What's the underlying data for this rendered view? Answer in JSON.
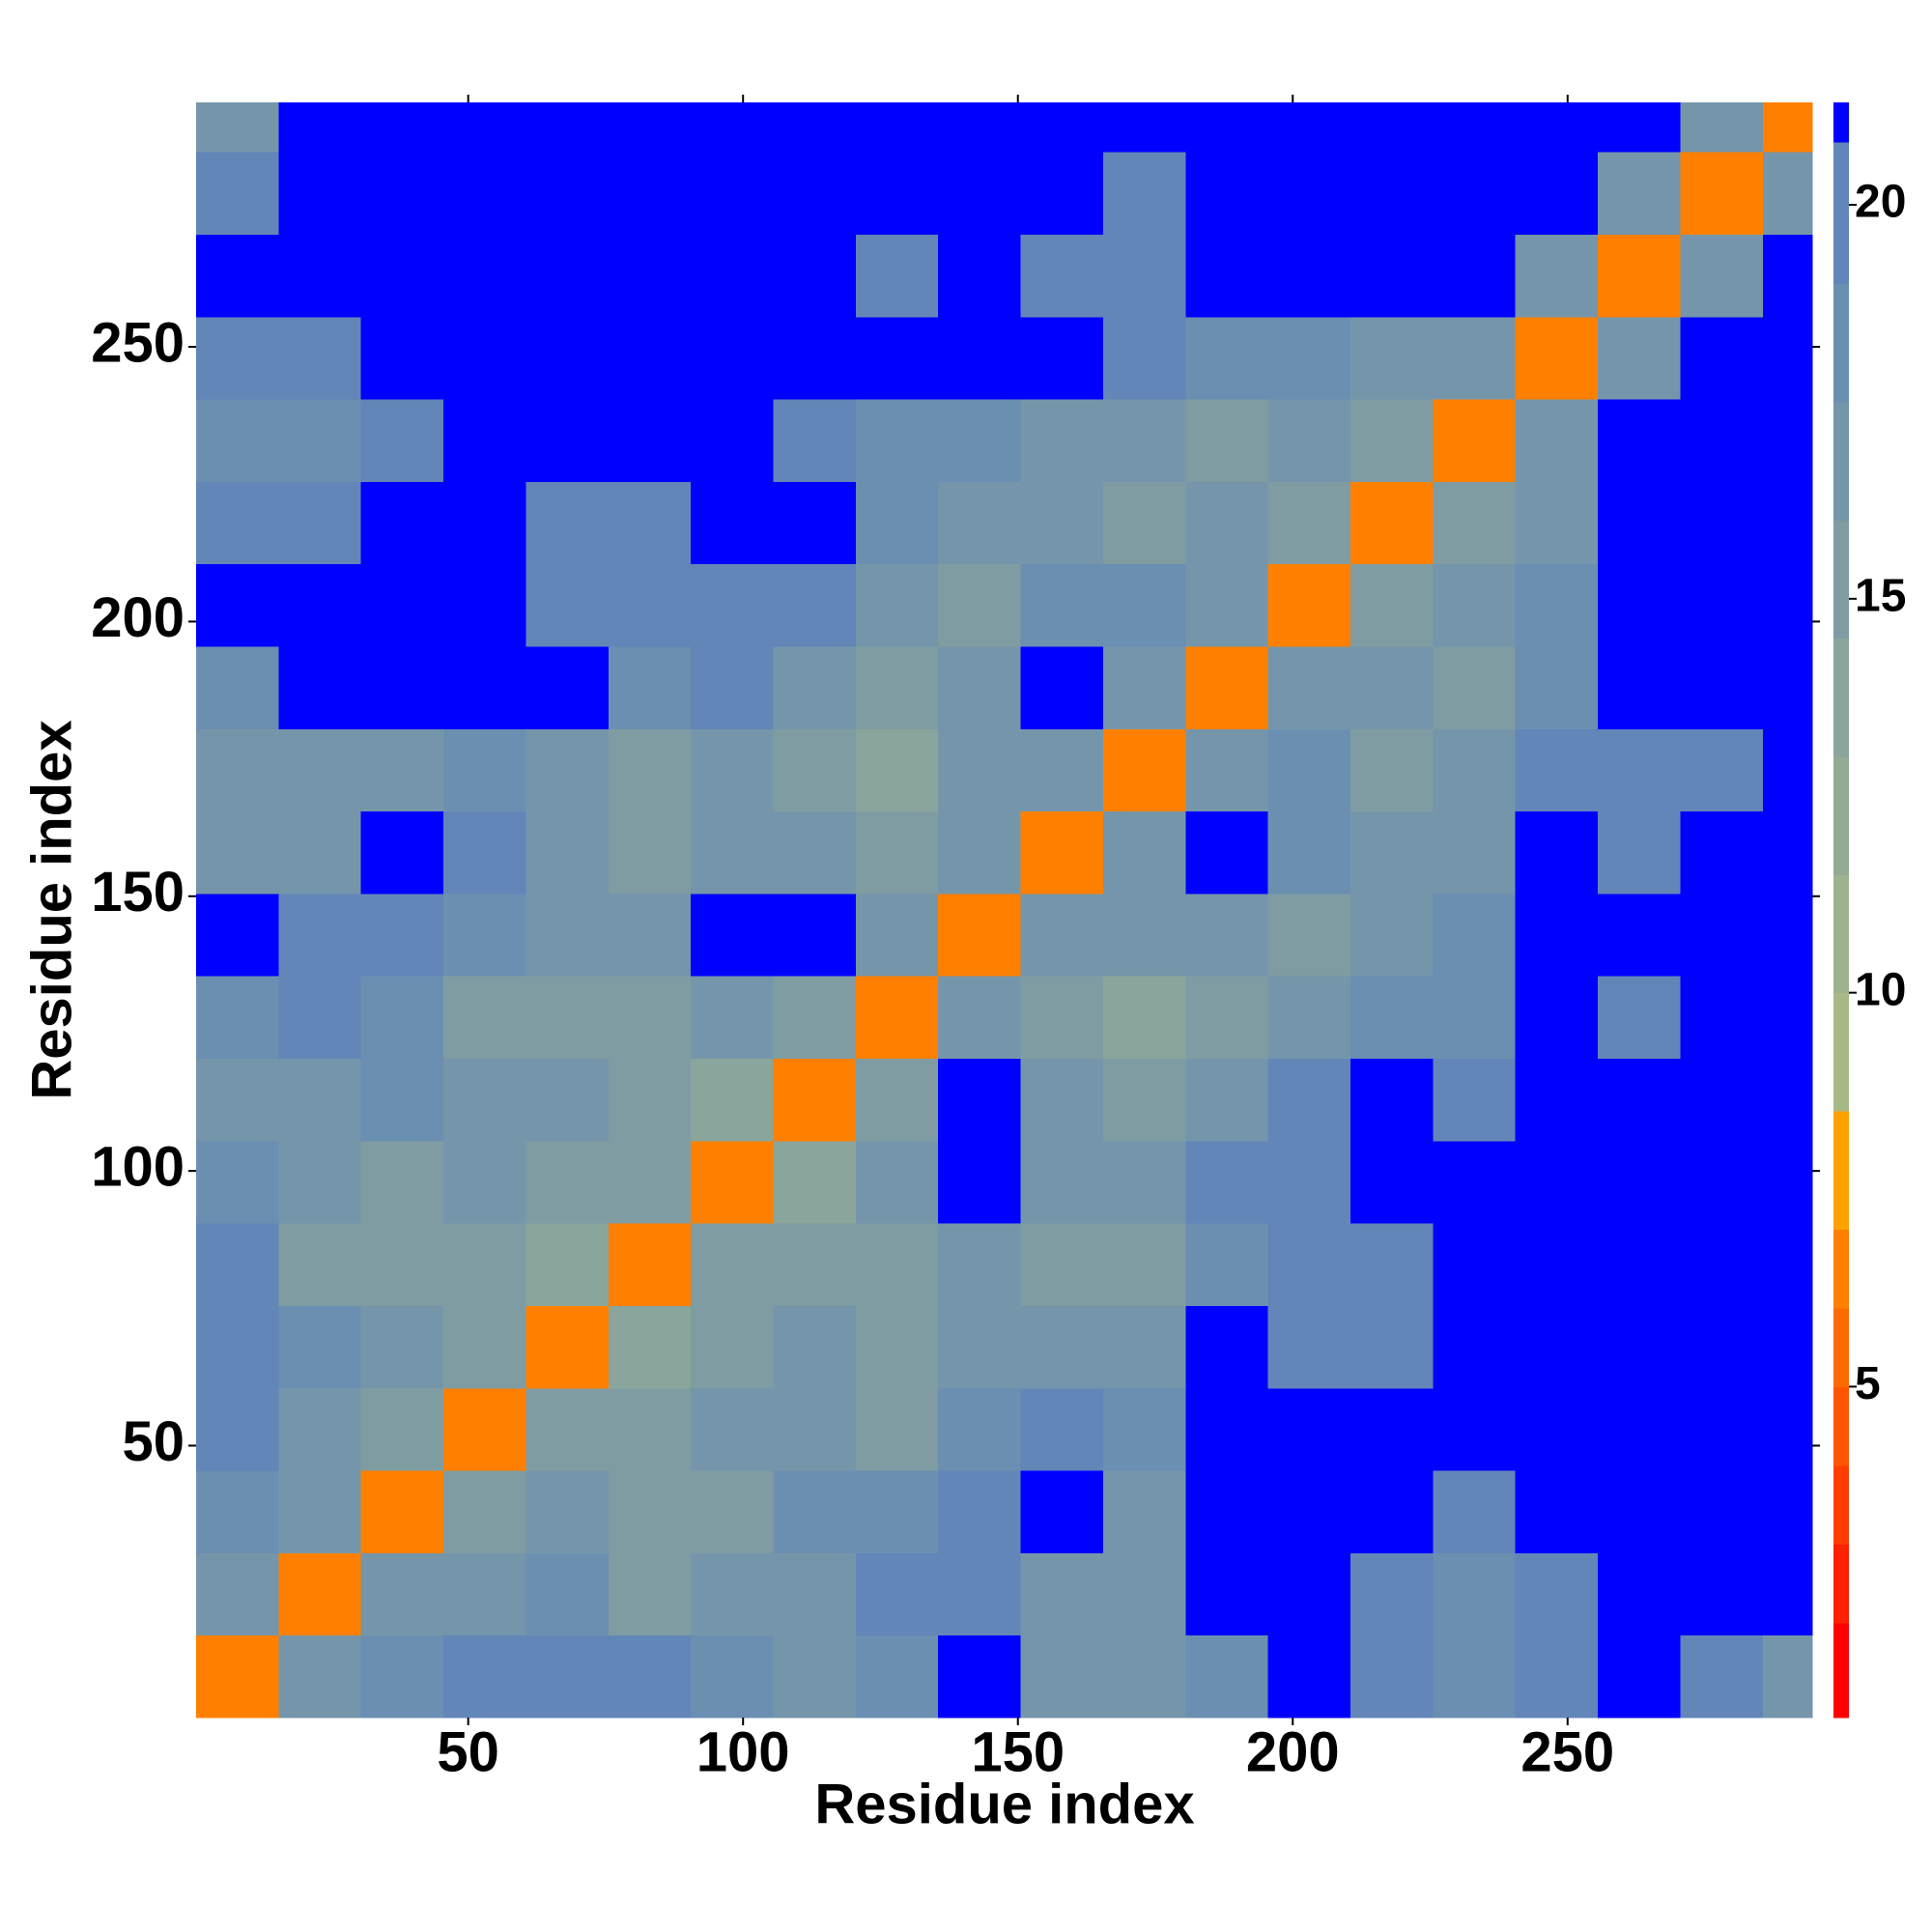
{
  "chart_data": {
    "type": "heatmap",
    "xlabel": "Residue index",
    "ylabel": "Residue index",
    "xlim": [
      0.5,
      294.5
    ],
    "ylim": [
      0.5,
      294.5
    ],
    "xticks": [
      50,
      100,
      150,
      200,
      250
    ],
    "yticks": [
      50,
      100,
      150,
      200,
      250
    ],
    "x_bins": [
      0.5,
      15.5,
      30.5,
      45.5,
      60.5,
      75.5,
      90.5,
      105.5,
      120.5,
      135.5,
      150.5,
      165.5,
      180.5,
      195.5,
      210.5,
      225.5,
      240.5,
      255.5,
      270.5,
      285.5,
      294.5
    ],
    "y_bins": [
      0.5,
      15.5,
      30.5,
      45.5,
      60.5,
      75.5,
      90.5,
      105.5,
      120.5,
      135.5,
      150.5,
      165.5,
      180.5,
      195.5,
      210.5,
      225.5,
      240.5,
      255.5,
      270.5,
      285.5,
      294.5
    ],
    "values": [
      [
        6,
        16,
        18,
        19,
        19,
        19,
        18,
        16,
        18,
        21,
        17,
        16,
        18,
        21,
        19,
        18,
        19,
        21,
        19,
        17
      ],
      [
        16,
        6,
        16,
        16,
        18,
        15,
        17,
        17,
        19,
        19,
        17,
        16,
        21,
        21,
        19,
        18,
        19,
        21,
        21,
        21
      ],
      [
        18,
        16,
        6,
        15,
        16,
        15,
        15,
        18,
        18,
        19,
        21,
        17,
        21,
        21,
        21,
        20,
        21,
        21,
        21,
        21
      ],
      [
        19,
        16,
        15,
        6,
        15,
        15,
        16,
        16,
        15,
        18,
        19,
        18,
        21,
        21,
        21,
        21,
        21,
        21,
        21,
        21
      ],
      [
        19,
        18,
        16,
        15,
        6,
        14,
        15,
        17,
        15,
        17,
        16,
        17,
        21,
        20,
        20,
        21,
        21,
        21,
        21,
        21
      ],
      [
        19,
        15,
        15,
        15,
        14,
        6,
        15,
        15,
        15,
        17,
        15,
        15,
        18,
        19,
        20,
        21,
        21,
        21,
        21,
        21
      ],
      [
        18,
        17,
        15,
        16,
        15,
        15,
        6,
        14,
        16,
        21,
        16,
        16,
        19,
        19,
        21,
        21,
        21,
        21,
        21,
        21
      ],
      [
        16,
        17,
        18,
        16,
        17,
        15,
        14,
        6,
        15,
        21,
        16,
        15,
        17,
        19,
        21,
        19,
        21,
        21,
        21,
        21
      ],
      [
        18,
        19,
        18,
        15,
        15,
        15,
        16,
        15,
        6,
        16,
        15,
        14,
        15,
        16,
        18,
        18,
        21,
        20,
        21,
        21
      ],
      [
        21,
        19,
        19,
        18,
        17,
        17,
        21,
        21,
        16,
        6,
        16,
        16,
        17,
        15,
        16,
        18,
        21,
        21,
        21,
        21
      ],
      [
        17,
        17,
        21,
        19,
        16,
        15,
        16,
        16,
        15,
        16,
        6,
        16,
        21,
        18,
        16,
        17,
        21,
        20,
        21,
        21
      ],
      [
        16,
        16,
        17,
        18,
        17,
        15,
        16,
        15,
        14,
        16,
        16,
        6,
        16,
        18,
        15,
        16,
        19,
        20,
        20,
        21
      ],
      [
        18,
        21,
        21,
        21,
        21,
        18,
        19,
        17,
        15,
        17,
        21,
        16,
        6,
        16,
        16,
        15,
        18,
        21,
        21,
        21
      ],
      [
        21,
        21,
        21,
        21,
        20,
        19,
        19,
        19,
        16,
        15,
        18,
        18,
        16,
        6,
        15,
        17,
        18,
        21,
        21,
        21
      ],
      [
        19,
        19,
        21,
        21,
        20,
        20,
        21,
        21,
        18,
        16,
        16,
        15,
        16,
        15,
        6,
        15,
        16,
        21,
        21,
        21
      ],
      [
        18,
        18,
        20,
        21,
        21,
        21,
        21,
        19,
        18,
        18,
        17,
        16,
        15,
        17,
        15,
        6,
        16,
        21,
        21,
        21
      ],
      [
        19,
        19,
        21,
        21,
        21,
        21,
        21,
        21,
        21,
        21,
        21,
        19,
        18,
        18,
        16,
        16,
        6,
        16,
        21,
        21
      ],
      [
        21,
        21,
        21,
        21,
        21,
        21,
        21,
        21,
        20,
        21,
        20,
        20,
        21,
        21,
        21,
        21,
        16,
        6,
        16,
        21
      ],
      [
        19,
        21,
        21,
        21,
        21,
        21,
        21,
        21,
        21,
        21,
        21,
        20,
        21,
        21,
        21,
        21,
        21,
        16,
        6,
        16
      ],
      [
        17,
        21,
        21,
        21,
        21,
        21,
        21,
        21,
        21,
        21,
        21,
        21,
        21,
        21,
        21,
        21,
        21,
        21,
        16,
        6
      ]
    ],
    "colorbar": {
      "levels": [
        0.8,
        2,
        3,
        4,
        5,
        6,
        7,
        8.5,
        10,
        11.5,
        13,
        14.5,
        16,
        17.5,
        19,
        20.8,
        21.3
      ],
      "colors": [
        "#ff0000",
        "#ff2200",
        "#ff3d00",
        "#ff5500",
        "#ff6a00",
        "#ff8000",
        "#ffa200",
        "#a8b987",
        "#9db38e",
        "#93ab95",
        "#8aa59b",
        "#7f9ca2",
        "#7596aa",
        "#6b8fb1",
        "#6286b8",
        "#0000ff"
      ],
      "ticks": [
        5,
        10,
        15,
        20
      ]
    }
  }
}
